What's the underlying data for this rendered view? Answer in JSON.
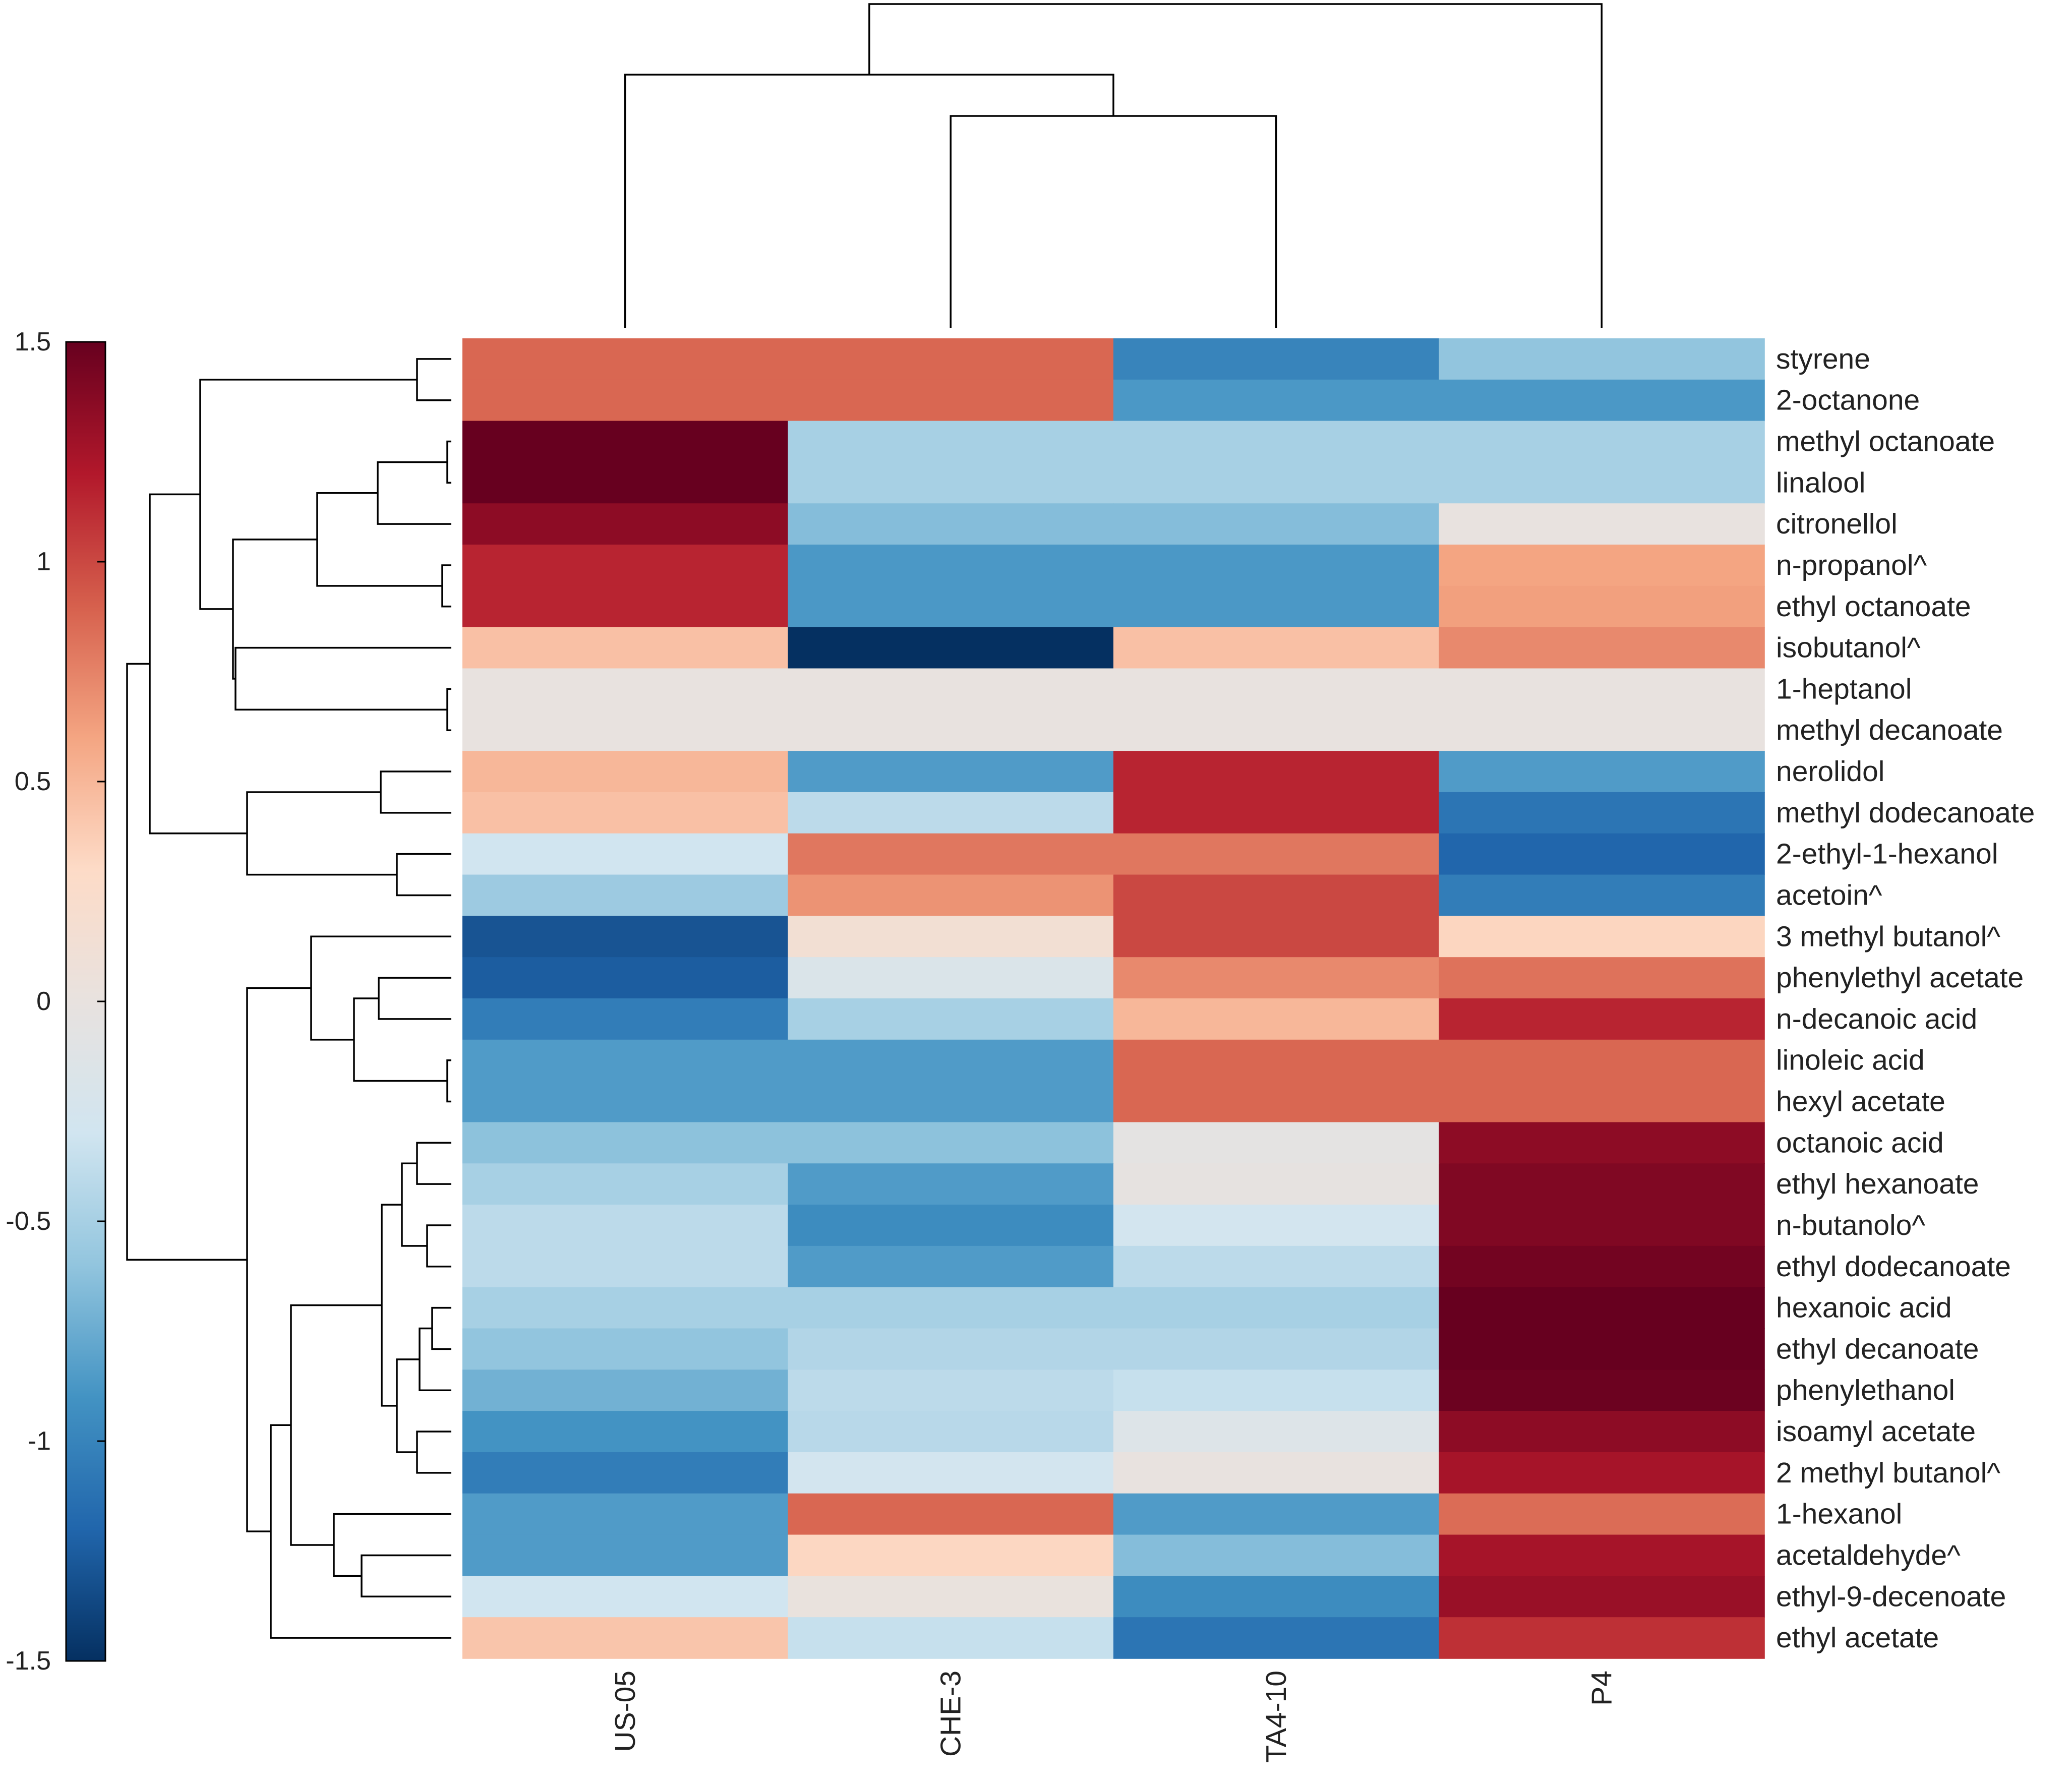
{
  "chart_data": {
    "type": "heatmap",
    "title": "",
    "columns": [
      "US-05",
      "CHE-3",
      "TA4-10",
      "P4"
    ],
    "rows": [
      "styrene",
      "2-octanone",
      "methyl octanoate",
      "linalool",
      "citronellol",
      "n-propanol^",
      "ethyl octanoate",
      "isobutanol^",
      "1-heptanol",
      "methyl decanoate",
      "nerolidol",
      "methyl dodecanoate",
      "2-ethyl-1-hexanol",
      "acetoin^",
      "3 methyl butanol^",
      "phenylethyl acetate",
      "n-decanoic acid",
      "linoleic acid",
      "hexyl acetate",
      "octanoic acid",
      "ethyl hexanoate",
      "n-butanolo^",
      "ethyl dodecanoate",
      "hexanoic acid",
      "ethyl decanoate",
      "phenylethanol",
      "isoamyl acetate",
      "2 methyl butanol^",
      "1-hexanol",
      "acetaldehyde^",
      "ethyl-9-decenoate",
      "ethyl acetate"
    ],
    "values": [
      [
        0.87,
        0.87,
        -1.0,
        -0.6
      ],
      [
        0.87,
        0.87,
        -0.87,
        -0.87
      ],
      [
        1.5,
        -0.5,
        -0.5,
        -0.5
      ],
      [
        1.5,
        -0.5,
        -0.5,
        -0.5
      ],
      [
        1.35,
        -0.65,
        -0.65,
        0.0
      ],
      [
        1.15,
        -0.87,
        -0.87,
        0.6
      ],
      [
        1.15,
        -0.87,
        -0.87,
        0.62
      ],
      [
        0.45,
        -1.5,
        0.45,
        0.72
      ],
      [
        0.0,
        0.0,
        0.0,
        0.0
      ],
      [
        0.0,
        0.0,
        0.0,
        0.0
      ],
      [
        0.5,
        -0.85,
        1.15,
        -0.85
      ],
      [
        0.45,
        -0.4,
        1.15,
        -1.1
      ],
      [
        -0.3,
        0.8,
        0.8,
        -1.2
      ],
      [
        -0.55,
        0.68,
        1.0,
        -1.05
      ],
      [
        -1.3,
        0.15,
        1.0,
        0.33
      ],
      [
        -1.25,
        -0.18,
        0.72,
        0.82
      ],
      [
        -1.05,
        -0.5,
        0.5,
        1.15
      ],
      [
        -0.85,
        -0.85,
        0.87,
        0.87
      ],
      [
        -0.85,
        -0.85,
        0.87,
        0.87
      ],
      [
        -0.62,
        -0.62,
        -0.05,
        1.35
      ],
      [
        -0.5,
        -0.85,
        -0.02,
        1.4
      ],
      [
        -0.4,
        -0.95,
        -0.28,
        1.4
      ],
      [
        -0.4,
        -0.85,
        -0.4,
        1.45
      ],
      [
        -0.5,
        -0.5,
        -0.5,
        1.5
      ],
      [
        -0.6,
        -0.45,
        -0.45,
        1.5
      ],
      [
        -0.72,
        -0.4,
        -0.35,
        1.48
      ],
      [
        -0.9,
        -0.42,
        -0.15,
        1.35
      ],
      [
        -1.05,
        -0.28,
        0.0,
        1.25
      ],
      [
        -0.85,
        0.87,
        -0.85,
        0.85
      ],
      [
        -0.85,
        0.32,
        -0.65,
        1.25
      ],
      [
        -0.3,
        0.02,
        -0.95,
        1.3
      ],
      [
        0.42,
        -0.35,
        -1.1,
        1.1
      ]
    ],
    "colorbar": {
      "vmin": -1.5,
      "vmax": 1.5,
      "ticks": [
        "1.5",
        "1",
        "0.5",
        "0",
        "-0.5",
        "-1",
        "-1.5"
      ],
      "colormap": [
        "#053061",
        "#2166ac",
        "#4393c3",
        "#92c5de",
        "#d1e5f0",
        "#e8e2df",
        "#fddbc7",
        "#f4a582",
        "#d6604d",
        "#b2182b",
        "#67001f"
      ]
    },
    "column_dendrogram": "((US-05,(CHE-3,TA4-10)),P4)",
    "row_dendrogram": "hierarchical clustering of the 32 compounds (left)"
  }
}
